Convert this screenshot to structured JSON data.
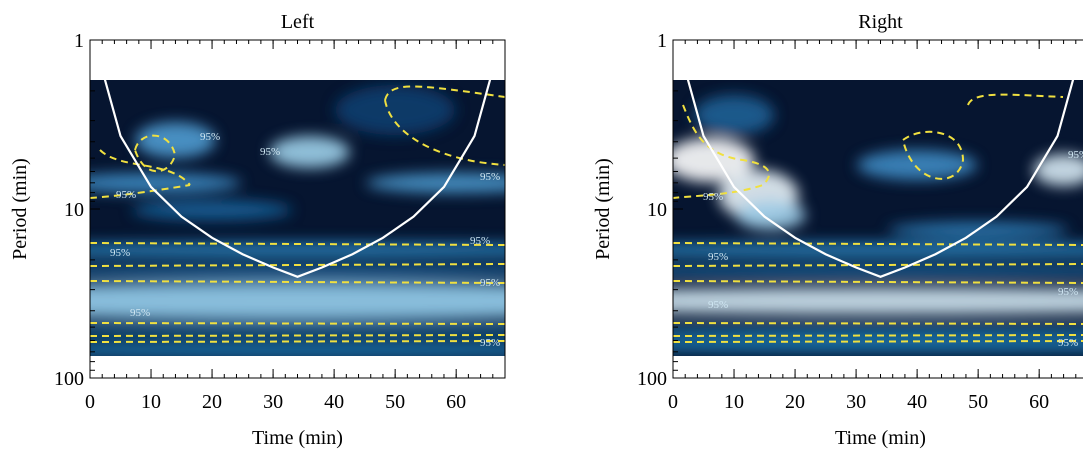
{
  "chart_data": [
    {
      "type": "heatmap",
      "title": "Left",
      "x_label": "Time (min)",
      "y_label": "Period (min)",
      "xlim": [
        0,
        68
      ],
      "xticks": [
        0,
        10,
        20,
        30,
        40,
        50,
        60
      ],
      "ylim": [
        1,
        100
      ],
      "yticks": [
        1,
        10,
        100
      ],
      "log_y": true,
      "invert_y": true,
      "cone": {
        "x": [
          2,
          5,
          10,
          15,
          20,
          25,
          30,
          34,
          38,
          43,
          48,
          53,
          58,
          63,
          66
        ],
        "values": [
          1.5,
          3.7,
          7.4,
          11.1,
          14.8,
          18.5,
          22.2,
          25.2,
          22.2,
          18.5,
          14.8,
          11.1,
          7.4,
          3.7,
          1.5
        ]
      },
      "annotations": [
        "95%",
        "95%",
        "95%",
        "95%",
        "95%",
        "95%",
        "95%",
        "95%",
        "95%"
      ]
    },
    {
      "type": "heatmap",
      "title": "Right",
      "x_label": "Time (min)",
      "y_label": "Period (min)",
      "xlim": [
        0,
        68
      ],
      "xticks": [
        0,
        10,
        20,
        30,
        40,
        50,
        60
      ],
      "ylim": [
        1,
        100
      ],
      "yticks": [
        1,
        10,
        100
      ],
      "log_y": true,
      "invert_y": true,
      "cone": {
        "x": [
          2,
          5,
          10,
          15,
          20,
          25,
          30,
          34,
          38,
          43,
          48,
          53,
          58,
          63,
          66
        ],
        "values": [
          1.5,
          3.7,
          7.4,
          11.1,
          14.8,
          18.5,
          22.2,
          25.2,
          22.2,
          18.5,
          14.8,
          11.1,
          7.4,
          3.7,
          1.5
        ]
      },
      "annotations": [
        "95%",
        "95%",
        "95%",
        "95%",
        "95%",
        "95%"
      ]
    }
  ]
}
